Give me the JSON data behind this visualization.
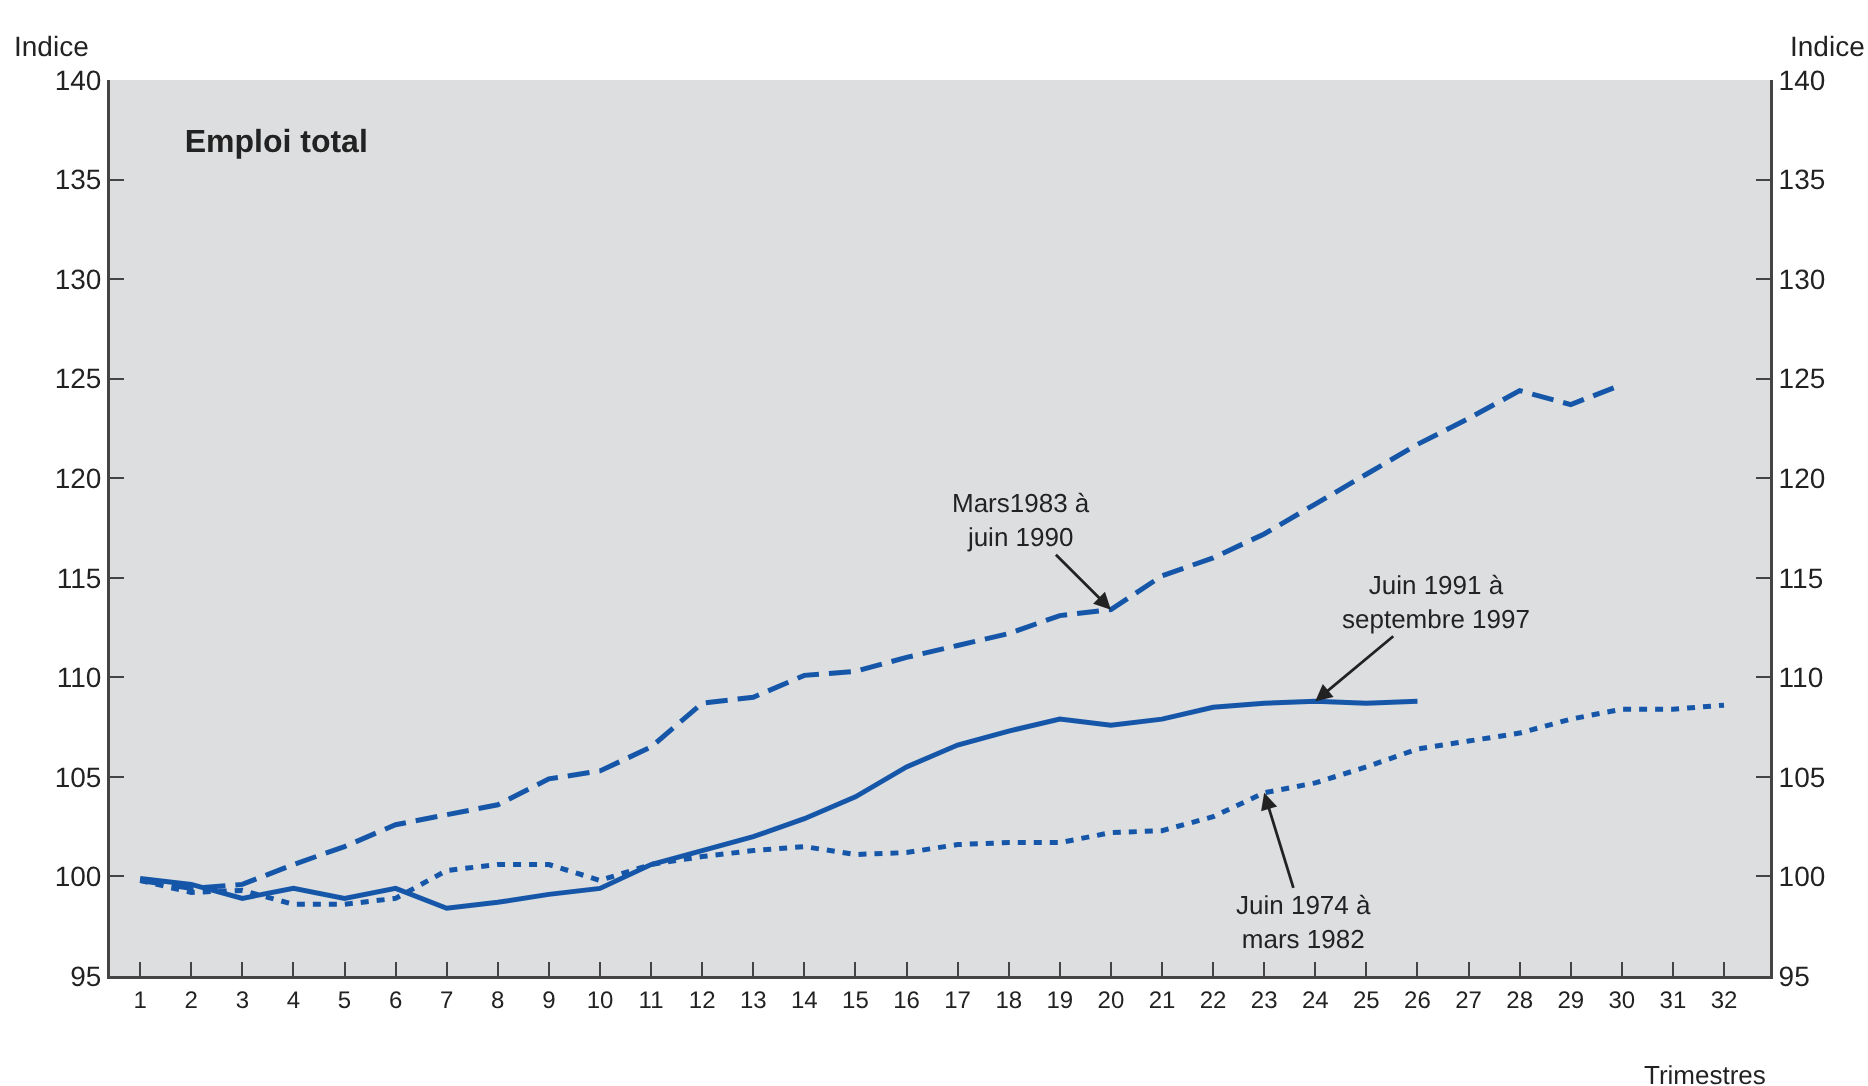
{
  "chart_data": {
    "type": "line",
    "title": "Emploi total",
    "xlabel": "Trimestres",
    "ylabel": "Indice",
    "y2label": "Indice",
    "x": [
      1,
      2,
      3,
      4,
      5,
      6,
      7,
      8,
      9,
      10,
      11,
      12,
      13,
      14,
      15,
      16,
      17,
      18,
      19,
      20,
      21,
      22,
      23,
      24,
      25,
      26,
      27,
      28,
      29,
      30,
      31,
      32
    ],
    "xlim": [
      0.41,
      32.9
    ],
    "xticks": [
      1,
      2,
      3,
      4,
      5,
      6,
      7,
      8,
      9,
      10,
      11,
      12,
      13,
      14,
      15,
      16,
      17,
      18,
      19,
      20,
      21,
      22,
      23,
      24,
      25,
      26,
      27,
      28,
      29,
      30,
      31,
      32
    ],
    "ylim": [
      95,
      140
    ],
    "yticks": [
      95,
      100,
      105,
      110,
      115,
      120,
      125,
      130,
      135,
      140
    ],
    "y2lim": [
      95,
      140
    ],
    "y2ticks": [
      95,
      100,
      105,
      110,
      115,
      120,
      125,
      130,
      135,
      140
    ],
    "grid": false,
    "legend": false,
    "marker": "none",
    "series": [
      {
        "name": "Mars1983 à\njuin 1990",
        "color": "#1556a8",
        "line_style": "dashed",
        "values": [
          99.8,
          99.4,
          99.6,
          100.6,
          101.5,
          102.6,
          103.1,
          103.6,
          104.9,
          105.3,
          106.5,
          108.7,
          109.0,
          110.1,
          110.3,
          111.0,
          111.6,
          112.2,
          113.1,
          113.4,
          115.1,
          116.0,
          117.2,
          118.7,
          120.2,
          121.7,
          123.0,
          124.4,
          123.7,
          124.7,
          null,
          null
        ]
      },
      {
        "name": "Juin 1991 à\nseptembre 1997",
        "color": "#1556a8",
        "line_style": "solid",
        "values": [
          99.9,
          99.6,
          98.9,
          99.4,
          98.9,
          99.4,
          98.4,
          98.7,
          99.1,
          99.4,
          100.6,
          101.3,
          102.0,
          102.9,
          104.0,
          105.5,
          106.6,
          107.3,
          107.9,
          107.6,
          107.9,
          108.5,
          108.7,
          108.8,
          108.7,
          108.8,
          null,
          null,
          null,
          null,
          null,
          null
        ]
      },
      {
        "name": "Juin 1974 à\nmars 1982",
        "color": "#1556a8",
        "line_style": "dotted",
        "values": [
          99.8,
          99.2,
          99.3,
          98.6,
          98.6,
          98.9,
          100.3,
          100.6,
          100.6,
          99.8,
          100.6,
          101.0,
          101.3,
          101.5,
          101.1,
          101.2,
          101.6,
          101.7,
          101.7,
          102.2,
          102.3,
          103.0,
          104.2,
          104.7,
          105.5,
          106.4,
          106.8,
          107.2,
          107.9,
          108.4,
          108.4,
          108.6
        ]
      }
    ]
  }
}
